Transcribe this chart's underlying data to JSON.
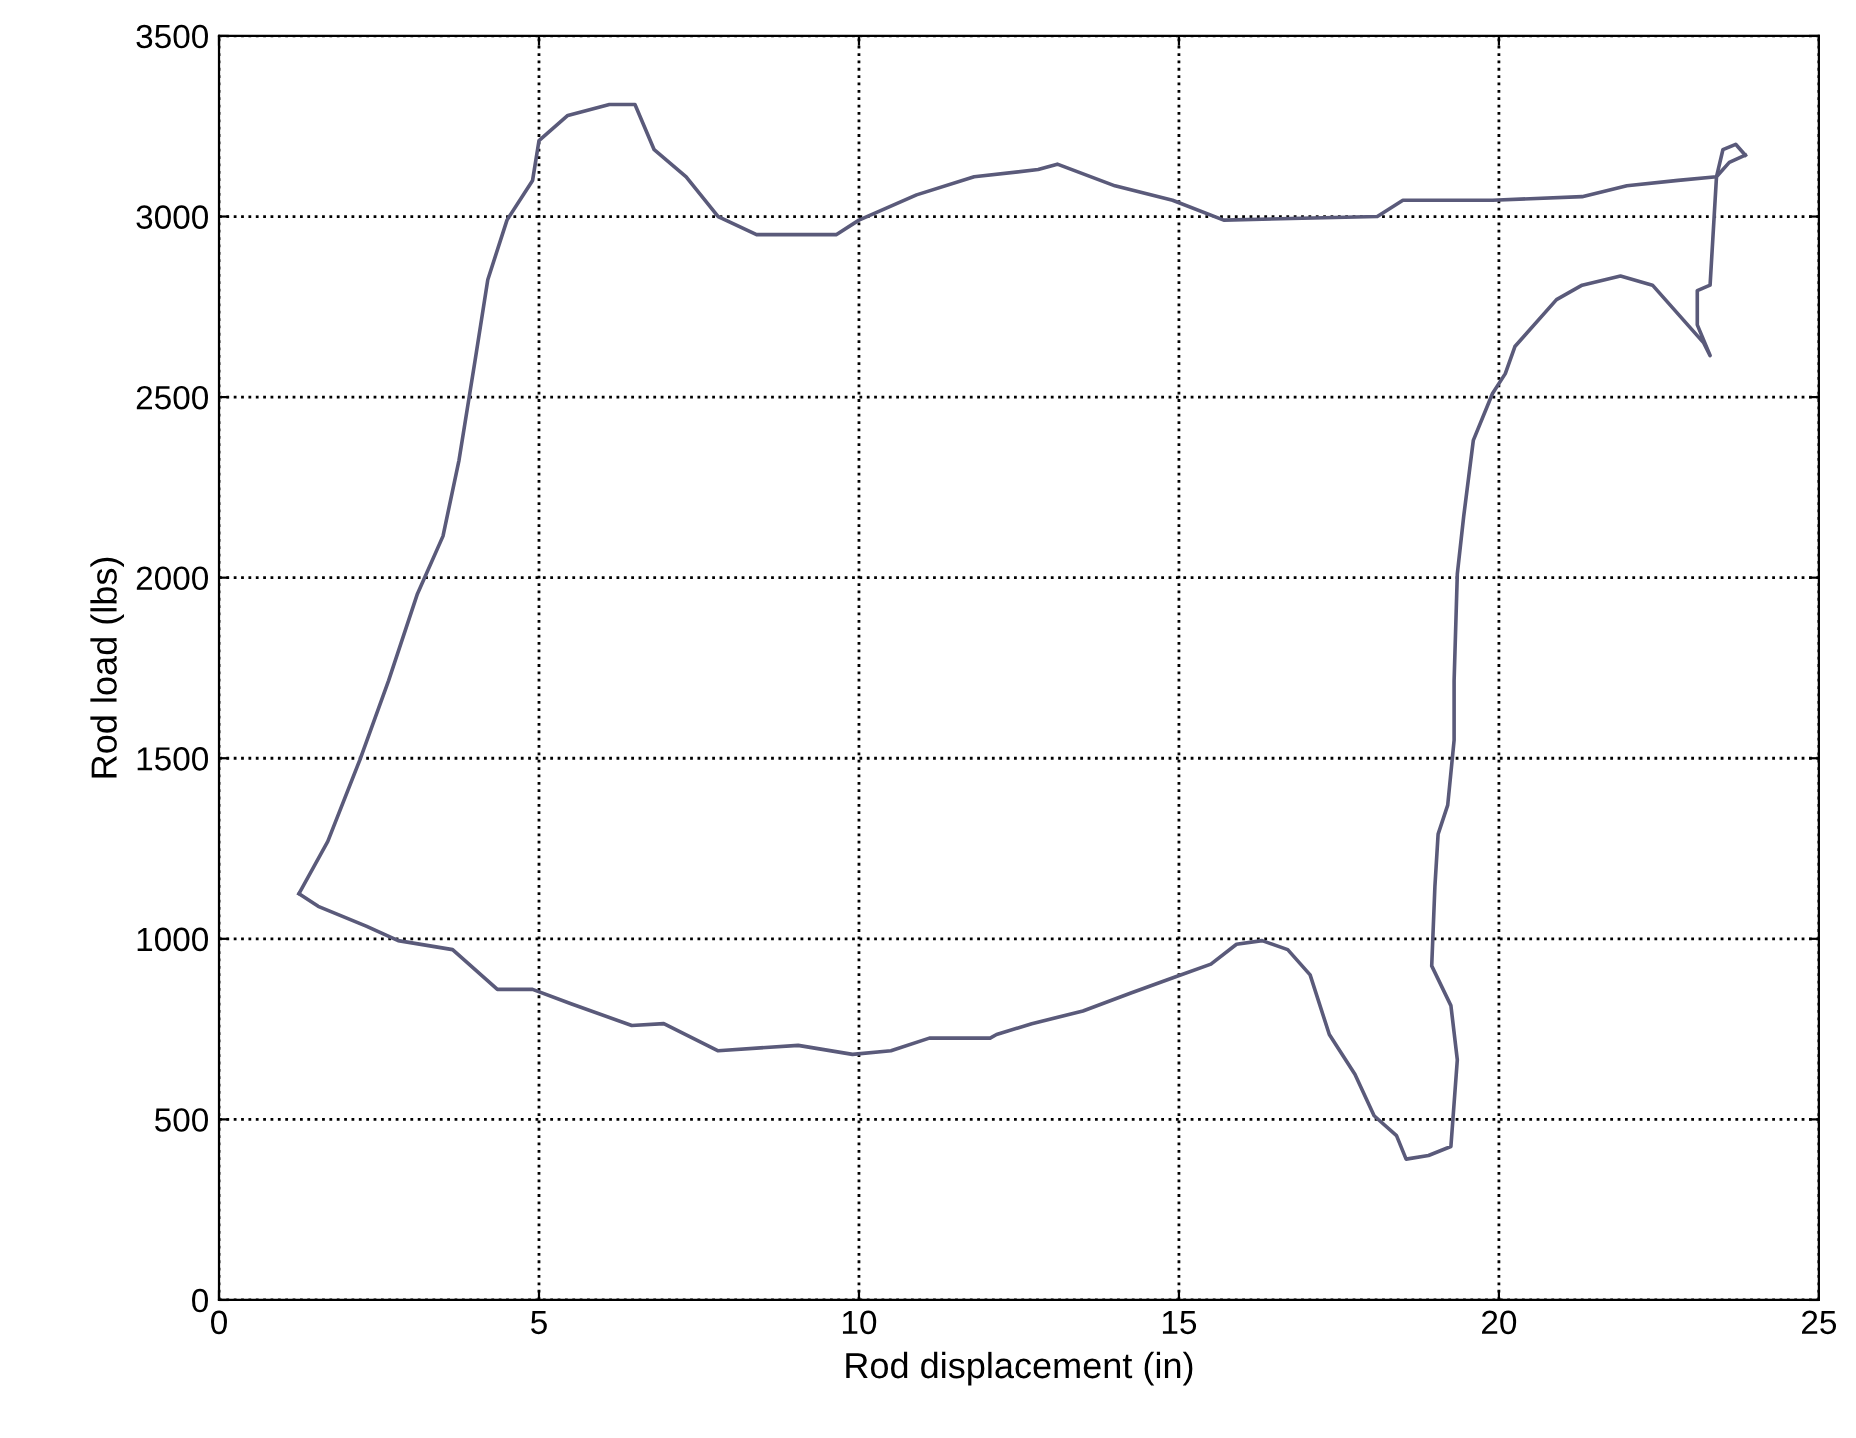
{
  "chart_data": {
    "type": "line",
    "xlabel": "Rod displacement (in)",
    "ylabel": "Rod load (lbs)",
    "xlim": [
      0,
      25
    ],
    "xticks": [
      0,
      5,
      10,
      15,
      20,
      25
    ],
    "ylim": [
      0,
      3500
    ],
    "yticks": [
      0,
      500,
      1000,
      1500,
      2000,
      2500,
      3000,
      3500
    ],
    "grid": true,
    "marker": "none",
    "line_style": "solid",
    "series": [
      {
        "color": "#5a5a7a",
        "x": [
          1.25,
          1.7,
          2.2,
          2.65,
          3.1,
          3.5,
          3.75,
          4.0,
          4.2,
          4.5,
          4.9,
          5.0,
          5.45,
          6.1,
          6.5,
          6.8,
          7.3,
          7.8,
          8.4,
          9.65,
          10.0,
          10.9,
          11.8,
          12.8,
          13.1,
          14.0,
          14.9,
          15.7,
          18.1,
          18.5,
          19.9,
          21.3,
          22.0,
          22.8,
          23.4,
          23.5,
          23.7,
          23.85
        ],
        "values": [
          1125,
          1270,
          1495,
          1715,
          1955,
          2115,
          2325,
          2600,
          2825,
          2990,
          3100,
          3210,
          3280,
          3310,
          3310,
          3185,
          3110,
          3000,
          2950,
          2950,
          2990,
          3060,
          3110,
          3130,
          3145,
          3085,
          3045,
          2990,
          3000,
          3045,
          3045,
          3055,
          3085,
          3100,
          3110,
          3185,
          3200,
          3170
        ]
      },
      {
        "color": "#5a5a7a",
        "x": [
          23.85,
          23.6,
          23.4,
          23.3,
          23.1,
          23.1,
          23.3,
          23.2,
          22.4,
          21.9,
          21.3,
          20.9,
          20.25,
          20.1,
          19.9,
          19.6,
          19.45,
          19.35,
          19.3,
          19.3,
          19.2,
          19.05,
          19.0,
          18.95,
          19.25,
          19.35,
          19.25,
          18.9,
          18.55,
          18.4,
          18.05,
          17.75,
          17.35,
          17.05,
          16.7,
          16.3,
          15.9,
          15.5,
          14.95,
          14.25,
          13.5,
          12.7,
          12.15,
          12.05,
          11.1,
          10.5,
          9.9,
          9.05,
          7.8,
          6.95,
          6.45,
          5.5,
          4.9,
          4.35,
          3.65,
          2.8,
          2.3,
          1.55,
          1.25
        ],
        "values": [
          3170,
          3150,
          3110,
          2810,
          2795,
          2700,
          2615,
          2650,
          2810,
          2835,
          2810,
          2770,
          2640,
          2565,
          2510,
          2380,
          2170,
          2010,
          1715,
          1550,
          1370,
          1290,
          1145,
          925,
          815,
          665,
          425,
          400,
          390,
          455,
          510,
          625,
          735,
          900,
          970,
          995,
          985,
          930,
          895,
          850,
          800,
          765,
          735,
          725,
          725,
          690,
          680,
          705,
          690,
          765,
          760,
          820,
          860,
          860,
          970,
          995,
          1035,
          1090,
          1125
        ]
      }
    ]
  }
}
